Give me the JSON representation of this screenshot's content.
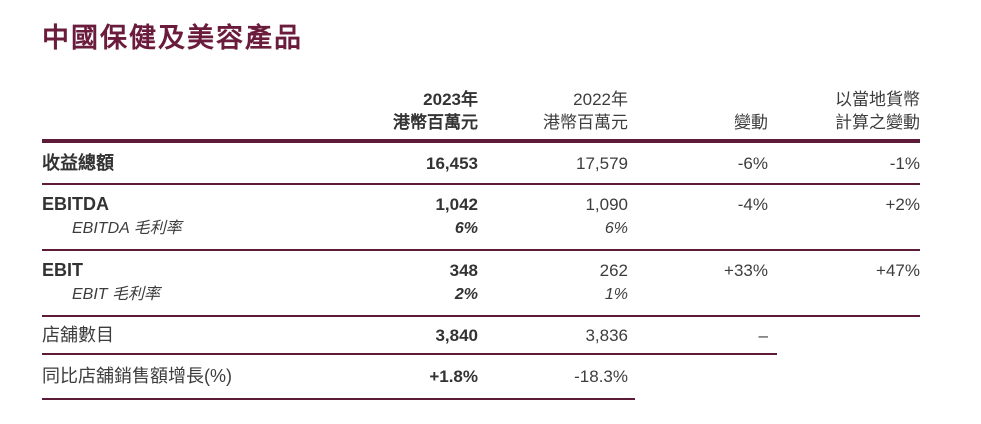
{
  "title": "中國保健及美容產品",
  "colors": {
    "accent_maroon_rules": "#5d1a39",
    "title_maroon": "#6b1c3c",
    "body_text": "#3d3d3d"
  },
  "table": {
    "header": {
      "y2023_line1": "2023年",
      "y2023_line2": "港幣百萬元",
      "y2022_line1": "2022年",
      "y2022_line2": "港幣百萬元",
      "change": "變動",
      "local_line1": "以當地貨幣",
      "local_line2": "計算之變動"
    },
    "rows": {
      "revenue": {
        "label": "收益總額",
        "y2023": "16,453",
        "y2022": "17,579",
        "change": "-6%",
        "local_change": "-1%"
      },
      "ebitda": {
        "label": "EBITDA",
        "y2023": "1,042",
        "y2022": "1,090",
        "change": "-4%",
        "local_change": "+2%"
      },
      "ebitda_margin": {
        "label": "EBITDA 毛利率",
        "y2023": "6%",
        "y2022": "6%"
      },
      "ebit": {
        "label": "EBIT",
        "y2023": "348",
        "y2022": "262",
        "change": "+33%",
        "local_change": "+47%"
      },
      "ebit_margin": {
        "label": "EBIT 毛利率",
        "y2023": "2%",
        "y2022": "1%"
      },
      "stores": {
        "label": "店舖數目",
        "y2023": "3,840",
        "y2022": "3,836",
        "change": "–"
      },
      "sss_growth": {
        "label": "同比店舖銷售額增長(%)",
        "y2023": "+1.8%",
        "y2022": "-18.3%"
      }
    }
  }
}
